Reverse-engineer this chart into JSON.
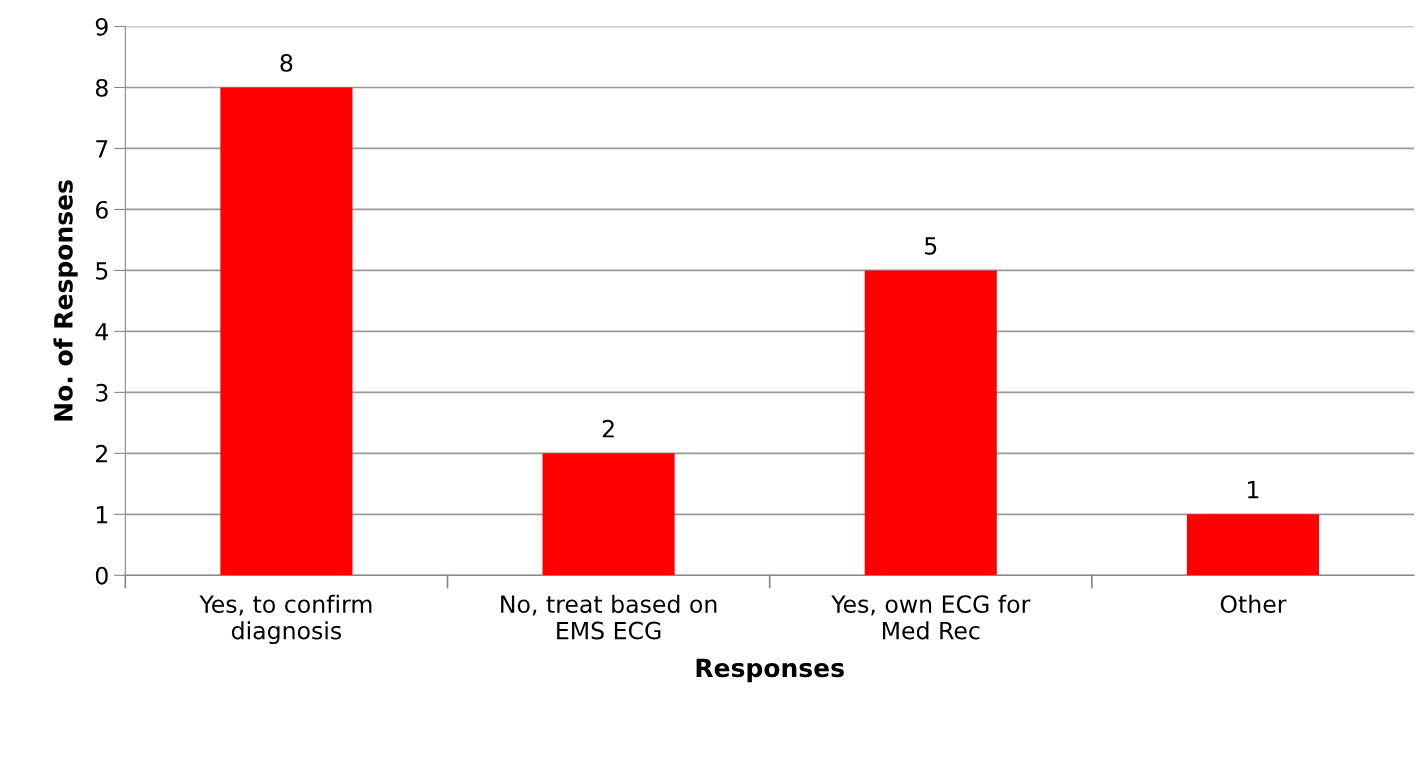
{
  "chart_data": {
    "type": "bar",
    "categories": [
      "Yes, to confirm\ndiagnosis",
      "No, treat based on\nEMS ECG",
      "Yes, own ECG for\nMed Rec",
      "Other"
    ],
    "values": [
      8,
      2,
      5,
      1
    ],
    "color": "#ff0000",
    "xlabel": "Responses",
    "ylabel": "No. of Responses",
    "ylim": [
      0,
      9
    ],
    "yticks": [
      0,
      1,
      2,
      3,
      4,
      5,
      6,
      7,
      8,
      9
    ],
    "grid": "y",
    "data_labels": true
  }
}
